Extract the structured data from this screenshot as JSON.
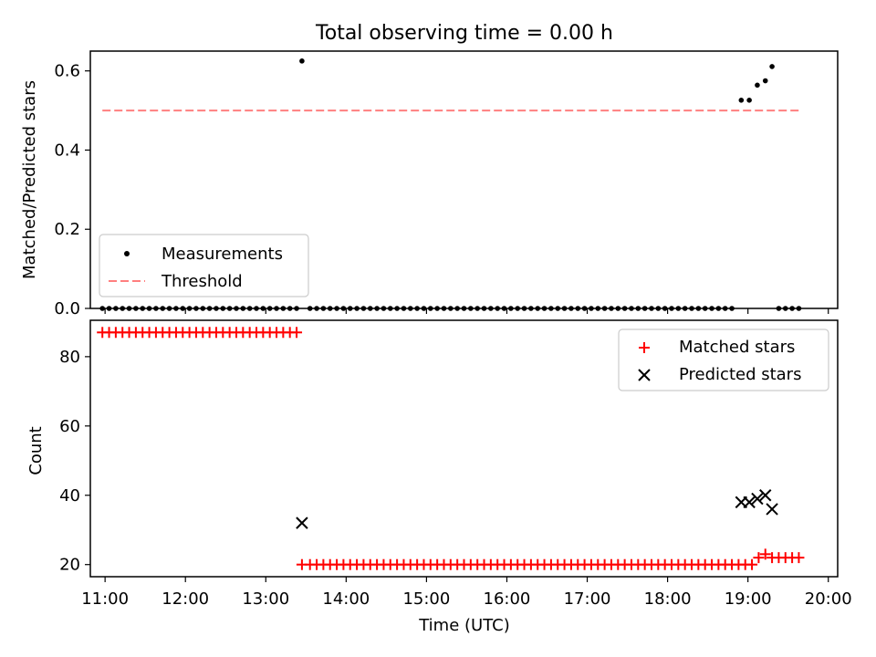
{
  "chart_data": [
    {
      "type": "scatter",
      "title": "Total observing time = 0.00 h",
      "xlabel": "",
      "ylabel": "Matched/Predicted stars",
      "xlim": [
        "10:49",
        "20:07"
      ],
      "ylim": [
        0,
        0.65
      ],
      "yticks": [
        "0.0",
        "0.2",
        "0.4",
        "0.6"
      ],
      "grid": false,
      "legend_position": "lower-left",
      "threshold": 0.5,
      "threshold_range": [
        "10:58",
        "19:38"
      ],
      "series": [
        {
          "name": "Measurements",
          "color": "#000000",
          "marker": "dot",
          "points": [
            [
              "10:58",
              0
            ],
            [
              "11:03",
              0
            ],
            [
              "11:08",
              0
            ],
            [
              "11:13",
              0
            ],
            [
              "11:18",
              0
            ],
            [
              "11:23",
              0
            ],
            [
              "11:28",
              0
            ],
            [
              "11:33",
              0
            ],
            [
              "11:38",
              0
            ],
            [
              "11:43",
              0
            ],
            [
              "11:48",
              0
            ],
            [
              "11:53",
              0
            ],
            [
              "11:58",
              0
            ],
            [
              "12:03",
              0
            ],
            [
              "12:08",
              0
            ],
            [
              "12:13",
              0
            ],
            [
              "12:18",
              0
            ],
            [
              "12:23",
              0
            ],
            [
              "12:28",
              0
            ],
            [
              "12:33",
              0
            ],
            [
              "12:38",
              0
            ],
            [
              "12:43",
              0
            ],
            [
              "12:48",
              0
            ],
            [
              "12:53",
              0
            ],
            [
              "12:58",
              0
            ],
            [
              "13:03",
              0
            ],
            [
              "13:08",
              0
            ],
            [
              "13:13",
              0
            ],
            [
              "13:18",
              0
            ],
            [
              "13:23",
              0
            ],
            [
              "13:27",
              0.625
            ],
            [
              "13:33",
              0
            ],
            [
              "13:38",
              0
            ],
            [
              "13:43",
              0
            ],
            [
              "13:48",
              0
            ],
            [
              "13:53",
              0
            ],
            [
              "13:58",
              0
            ],
            [
              "14:03",
              0
            ],
            [
              "14:08",
              0
            ],
            [
              "14:13",
              0
            ],
            [
              "14:18",
              0
            ],
            [
              "14:23",
              0
            ],
            [
              "14:28",
              0
            ],
            [
              "14:33",
              0
            ],
            [
              "14:38",
              0
            ],
            [
              "14:43",
              0
            ],
            [
              "14:48",
              0
            ],
            [
              "14:53",
              0
            ],
            [
              "14:58",
              0
            ],
            [
              "15:03",
              0
            ],
            [
              "15:08",
              0
            ],
            [
              "15:13",
              0
            ],
            [
              "15:18",
              0
            ],
            [
              "15:23",
              0
            ],
            [
              "15:28",
              0
            ],
            [
              "15:33",
              0
            ],
            [
              "15:38",
              0
            ],
            [
              "15:43",
              0
            ],
            [
              "15:48",
              0
            ],
            [
              "15:53",
              0
            ],
            [
              "15:58",
              0
            ],
            [
              "16:03",
              0
            ],
            [
              "16:08",
              0
            ],
            [
              "16:13",
              0
            ],
            [
              "16:18",
              0
            ],
            [
              "16:23",
              0
            ],
            [
              "16:28",
              0
            ],
            [
              "16:33",
              0
            ],
            [
              "16:38",
              0
            ],
            [
              "16:43",
              0
            ],
            [
              "16:48",
              0
            ],
            [
              "16:53",
              0
            ],
            [
              "16:58",
              0
            ],
            [
              "17:03",
              0
            ],
            [
              "17:08",
              0
            ],
            [
              "17:13",
              0
            ],
            [
              "17:18",
              0
            ],
            [
              "17:23",
              0
            ],
            [
              "17:28",
              0
            ],
            [
              "17:33",
              0
            ],
            [
              "17:38",
              0
            ],
            [
              "17:43",
              0
            ],
            [
              "17:48",
              0
            ],
            [
              "17:53",
              0
            ],
            [
              "17:58",
              0
            ],
            [
              "18:03",
              0
            ],
            [
              "18:08",
              0
            ],
            [
              "18:13",
              0
            ],
            [
              "18:18",
              0
            ],
            [
              "18:23",
              0
            ],
            [
              "18:28",
              0
            ],
            [
              "18:33",
              0
            ],
            [
              "18:38",
              0
            ],
            [
              "18:43",
              0
            ],
            [
              "18:48",
              0
            ],
            [
              "18:55",
              0.526
            ],
            [
              "19:01",
              0.526
            ],
            [
              "19:07",
              0.564
            ],
            [
              "19:13",
              0.575
            ],
            [
              "19:18",
              0.611
            ],
            [
              "19:23",
              0
            ],
            [
              "19:28",
              0
            ],
            [
              "19:33",
              0
            ],
            [
              "19:38",
              0
            ]
          ]
        },
        {
          "name": "Threshold",
          "color": "#ff7f7f",
          "style": "dashed"
        }
      ]
    },
    {
      "type": "scatter",
      "title": "",
      "xlabel": "Time (UTC)",
      "ylabel": "Count",
      "xlim": [
        "10:49",
        "20:07"
      ],
      "ylim": [
        16.5,
        90.5
      ],
      "xticks": [
        "11:00",
        "12:00",
        "13:00",
        "14:00",
        "15:00",
        "16:00",
        "17:00",
        "18:00",
        "19:00",
        "20:00"
      ],
      "yticks": [
        "20",
        "40",
        "60",
        "80"
      ],
      "grid": false,
      "legend_position": "upper-right",
      "series": [
        {
          "name": "Matched stars",
          "color": "#ff0000",
          "marker": "plus",
          "points": [
            [
              "10:58",
              87
            ],
            [
              "11:03",
              87
            ],
            [
              "11:08",
              87
            ],
            [
              "11:13",
              87
            ],
            [
              "11:18",
              87
            ],
            [
              "11:23",
              87
            ],
            [
              "11:28",
              87
            ],
            [
              "11:33",
              87
            ],
            [
              "11:38",
              87
            ],
            [
              "11:43",
              87
            ],
            [
              "11:48",
              87
            ],
            [
              "11:53",
              87
            ],
            [
              "11:58",
              87
            ],
            [
              "12:03",
              87
            ],
            [
              "12:08",
              87
            ],
            [
              "12:13",
              87
            ],
            [
              "12:18",
              87
            ],
            [
              "12:23",
              87
            ],
            [
              "12:28",
              87
            ],
            [
              "12:33",
              87
            ],
            [
              "12:38",
              87
            ],
            [
              "12:43",
              87
            ],
            [
              "12:48",
              87
            ],
            [
              "12:53",
              87
            ],
            [
              "12:58",
              87
            ],
            [
              "13:03",
              87
            ],
            [
              "13:08",
              87
            ],
            [
              "13:13",
              87
            ],
            [
              "13:18",
              87
            ],
            [
              "13:23",
              87
            ],
            [
              "13:27",
              20
            ],
            [
              "13:33",
              20
            ],
            [
              "13:38",
              20
            ],
            [
              "13:43",
              20
            ],
            [
              "13:48",
              20
            ],
            [
              "13:53",
              20
            ],
            [
              "13:58",
              20
            ],
            [
              "14:03",
              20
            ],
            [
              "14:08",
              20
            ],
            [
              "14:13",
              20
            ],
            [
              "14:18",
              20
            ],
            [
              "14:23",
              20
            ],
            [
              "14:28",
              20
            ],
            [
              "14:33",
              20
            ],
            [
              "14:38",
              20
            ],
            [
              "14:43",
              20
            ],
            [
              "14:48",
              20
            ],
            [
              "14:53",
              20
            ],
            [
              "14:58",
              20
            ],
            [
              "15:03",
              20
            ],
            [
              "15:08",
              20
            ],
            [
              "15:13",
              20
            ],
            [
              "15:18",
              20
            ],
            [
              "15:23",
              20
            ],
            [
              "15:28",
              20
            ],
            [
              "15:33",
              20
            ],
            [
              "15:38",
              20
            ],
            [
              "15:43",
              20
            ],
            [
              "15:48",
              20
            ],
            [
              "15:53",
              20
            ],
            [
              "15:58",
              20
            ],
            [
              "16:03",
              20
            ],
            [
              "16:08",
              20
            ],
            [
              "16:13",
              20
            ],
            [
              "16:18",
              20
            ],
            [
              "16:23",
              20
            ],
            [
              "16:28",
              20
            ],
            [
              "16:33",
              20
            ],
            [
              "16:38",
              20
            ],
            [
              "16:43",
              20
            ],
            [
              "16:48",
              20
            ],
            [
              "16:53",
              20
            ],
            [
              "16:58",
              20
            ],
            [
              "17:03",
              20
            ],
            [
              "17:08",
              20
            ],
            [
              "17:13",
              20
            ],
            [
              "17:18",
              20
            ],
            [
              "17:23",
              20
            ],
            [
              "17:28",
              20
            ],
            [
              "17:33",
              20
            ],
            [
              "17:38",
              20
            ],
            [
              "17:43",
              20
            ],
            [
              "17:48",
              20
            ],
            [
              "17:53",
              20
            ],
            [
              "17:58",
              20
            ],
            [
              "18:03",
              20
            ],
            [
              "18:08",
              20
            ],
            [
              "18:13",
              20
            ],
            [
              "18:18",
              20
            ],
            [
              "18:23",
              20
            ],
            [
              "18:28",
              20
            ],
            [
              "18:33",
              20
            ],
            [
              "18:38",
              20
            ],
            [
              "18:43",
              20
            ],
            [
              "18:48",
              20
            ],
            [
              "18:53",
              20
            ],
            [
              "18:58",
              20
            ],
            [
              "19:03",
              20
            ],
            [
              "19:08",
              22
            ],
            [
              "19:13",
              23
            ],
            [
              "19:18",
              22
            ],
            [
              "19:23",
              22
            ],
            [
              "19:28",
              22
            ],
            [
              "19:33",
              22
            ],
            [
              "19:38",
              22
            ]
          ]
        },
        {
          "name": "Predicted stars",
          "color": "#000000",
          "marker": "x",
          "points": [
            [
              "13:27",
              32
            ],
            [
              "18:55",
              38
            ],
            [
              "19:01",
              38
            ],
            [
              "19:07",
              39
            ],
            [
              "19:13",
              40
            ],
            [
              "19:18",
              36
            ]
          ]
        }
      ]
    }
  ]
}
